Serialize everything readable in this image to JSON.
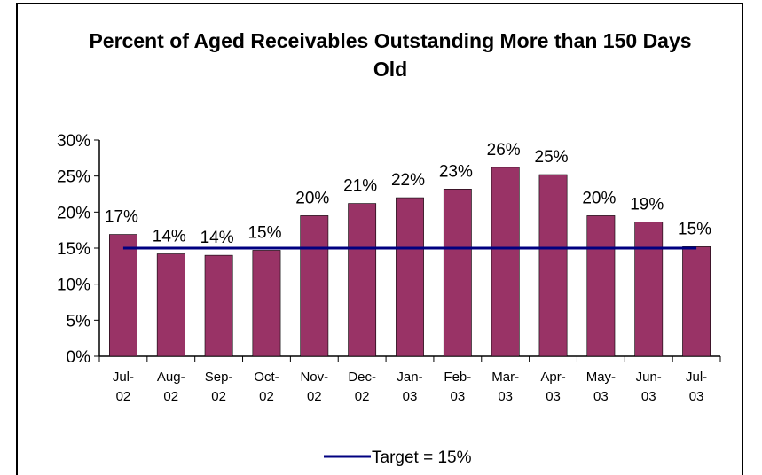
{
  "chart_data": {
    "type": "bar",
    "title": "Percent of Aged Receivables Outstanding More than 150 Days Old",
    "categories": [
      "Jul-02",
      "Aug-02",
      "Sep-02",
      "Oct-02",
      "Nov-02",
      "Dec-02",
      "Jan-03",
      "Feb-03",
      "Mar-03",
      "Apr-03",
      "May-03",
      "Jun-03",
      "Jul-03"
    ],
    "values": [
      16.9,
      14.2,
      14.0,
      14.7,
      19.5,
      21.2,
      22.0,
      23.2,
      26.2,
      25.2,
      19.5,
      18.6,
      15.2
    ],
    "value_labels": [
      "17%",
      "14%",
      "14%",
      "15%",
      "20%",
      "21%",
      "22%",
      "23%",
      "26%",
      "25%",
      "20%",
      "19%",
      "15%"
    ],
    "color": "#993366",
    "series": [
      {
        "name": "Target = 15%",
        "color": "#000080",
        "values": [
          15,
          15,
          15,
          15,
          15,
          15,
          15,
          15,
          15,
          15,
          15,
          15,
          15
        ]
      }
    ],
    "ylim": [
      0,
      30
    ],
    "yticks": [
      {
        "value": 0,
        "label": "0%"
      },
      {
        "value": 5,
        "label": "5%"
      },
      {
        "value": 10,
        "label": "10%"
      },
      {
        "value": 15,
        "label": "15%"
      },
      {
        "value": 20,
        "label": "20%"
      },
      {
        "value": 25,
        "label": "25%"
      },
      {
        "value": 30,
        "label": "30%"
      }
    ],
    "grid": false,
    "legend": "bottom"
  }
}
